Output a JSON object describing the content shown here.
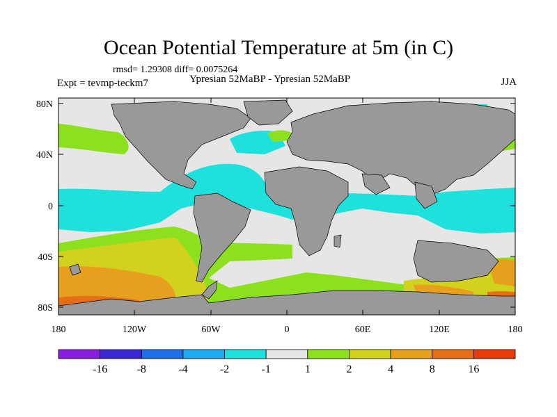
{
  "title": "Ocean Potential Temperature at 5m (in C)",
  "stats": "rmsd= 1.29308 diff= 0.0075264",
  "expt": "Expt = tevmp-teckm7",
  "subtitle": "Ypresian  52MaBP - Ypresian  52MaBP",
  "season": "JJA",
  "lat_ticks": [
    "80N",
    "40N",
    "0",
    "40S",
    "80S"
  ],
  "lon_ticks": [
    "180",
    "120W",
    "60W",
    "0",
    "60E",
    "120E",
    "180"
  ],
  "colorbar": {
    "colors": [
      "#8a1ee0",
      "#3c28d2",
      "#1e6ee6",
      "#1eaaf0",
      "#1ee1dc",
      "#e6e6e6",
      "#8ce01e",
      "#d2d21e",
      "#e6a01e",
      "#e66e14",
      "#e63c0a"
    ],
    "labels": [
      "-16",
      "-8",
      "-4",
      "-2",
      "-1",
      "1",
      "2",
      "4",
      "8",
      "16"
    ]
  },
  "colors": {
    "land": "#999999",
    "neutral": "#e6e6e6"
  }
}
